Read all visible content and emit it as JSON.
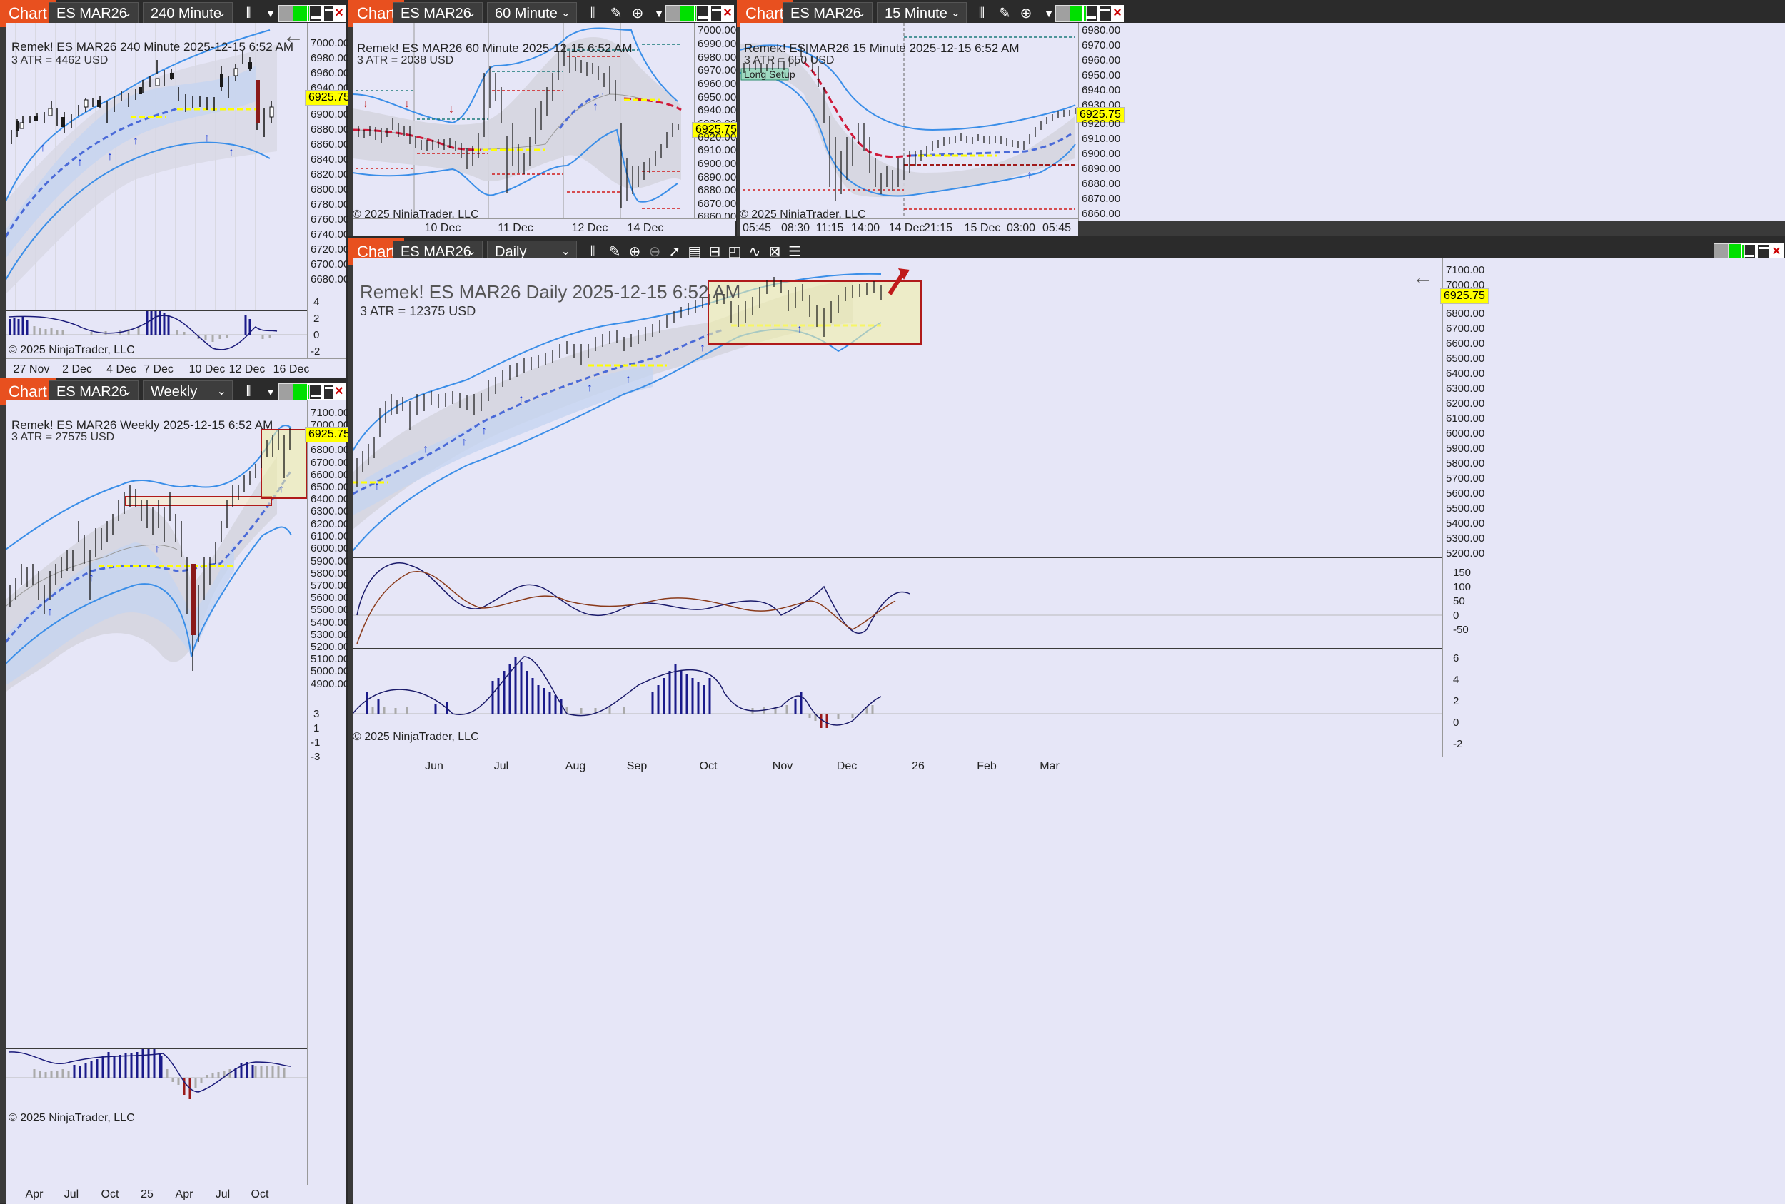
{
  "common": {
    "chart_tab": "Chart",
    "instrument": "ES MAR26",
    "copyright": "© 2025 NinjaTrader, LLC",
    "last_price": "6925.75"
  },
  "w240": {
    "interval": "240 Minute",
    "header": "Remek!  ES MAR26  240 Minute  2025-12-15 6:52 AM",
    "atr": "3 ATR = 4462 USD",
    "price_ticks": [
      "7000.00",
      "6980.00",
      "6960.00",
      "6940.00",
      "6920.00",
      "6900.00",
      "6880.00",
      "6860.00",
      "6840.00",
      "6820.00",
      "6800.00",
      "6780.00",
      "6760.00",
      "6740.00",
      "6720.00",
      "6700.00",
      "6680.00"
    ],
    "osc_ticks": [
      "4",
      "2",
      "0",
      "-2"
    ],
    "x_ticks": [
      "27 Nov",
      "2 Dec",
      "4 Dec",
      "7 Dec",
      "10 Dec",
      "12 Dec",
      "16 Dec"
    ]
  },
  "w60": {
    "interval": "60 Minute",
    "header": "Remek!  ES MAR26  60 Minute  2025-12-15 6:52 AM",
    "atr": "3 ATR = 2038 USD",
    "price_ticks": [
      "7000.00",
      "6990.00",
      "6980.00",
      "6970.00",
      "6960.00",
      "6950.00",
      "6940.00",
      "6930.00",
      "6920.00",
      "6910.00",
      "6900.00",
      "6890.00",
      "6880.00",
      "6870.00",
      "6860.00"
    ],
    "x_ticks": [
      "10 Dec",
      "11 Dec",
      "12 Dec",
      "14 Dec"
    ]
  },
  "w15": {
    "interval": "15 Minute",
    "header": "Remek!  ES MAR26  15 Minute  2025-12-15 6:52 AM",
    "atr": "3 ATR = 650 USD",
    "label": "Long Setup",
    "price_ticks": [
      "6980.00",
      "6970.00",
      "6960.00",
      "6950.00",
      "6940.00",
      "6930.00",
      "6920.00",
      "6910.00",
      "6900.00",
      "6890.00",
      "6880.00",
      "6870.00",
      "6860.00"
    ],
    "x_ticks": [
      "05:45",
      "08:30",
      "11:15",
      "14:00",
      "14 Dec",
      "21:15",
      "15 Dec",
      "03:00",
      "05:45"
    ]
  },
  "wW": {
    "interval": "Weekly",
    "header": "Remek!  ES MAR26  Weekly  2025-12-15 6:52 AM",
    "atr": "3 ATR = 27575 USD",
    "price_ticks": [
      "7100.00",
      "7000.00",
      "6900.00",
      "6800.00",
      "6700.00",
      "6600.00",
      "6500.00",
      "6400.00",
      "6300.00",
      "6200.00",
      "6100.00",
      "6000.00",
      "5900.00",
      "5800.00",
      "5700.00",
      "5600.00",
      "5500.00",
      "5400.00",
      "5300.00",
      "5200.00",
      "5100.00",
      "5000.00",
      "4900.00"
    ],
    "osc_ticks": [
      "3",
      "1",
      "-1",
      "-3"
    ],
    "x_ticks": [
      "Apr",
      "Jul",
      "Oct",
      "25",
      "Apr",
      "Jul",
      "Oct"
    ]
  },
  "wD": {
    "interval": "Daily",
    "header": "Remek!  ES MAR26  Daily  2025-12-15 6:52 AM",
    "atr": "3 ATR = 12375 USD",
    "price_ticks": [
      "7100.00",
      "7000.00",
      "6900.00",
      "6800.00",
      "6700.00",
      "6600.00",
      "6500.00",
      "6400.00",
      "6300.00",
      "6200.00",
      "6100.00",
      "6000.00",
      "5900.00",
      "5800.00",
      "5700.00",
      "5600.00",
      "5500.00",
      "5400.00",
      "5300.00",
      "5200.00"
    ],
    "osc1_ticks": [
      "150",
      "100",
      "50",
      "0",
      "-50"
    ],
    "osc2_ticks": [
      "6",
      "4",
      "2",
      "0",
      "-2"
    ],
    "x_ticks": [
      "Jun",
      "Jul",
      "Aug",
      "Sep",
      "Oct",
      "Nov",
      "Dec",
      "26",
      "Feb",
      "Mar"
    ]
  }
}
